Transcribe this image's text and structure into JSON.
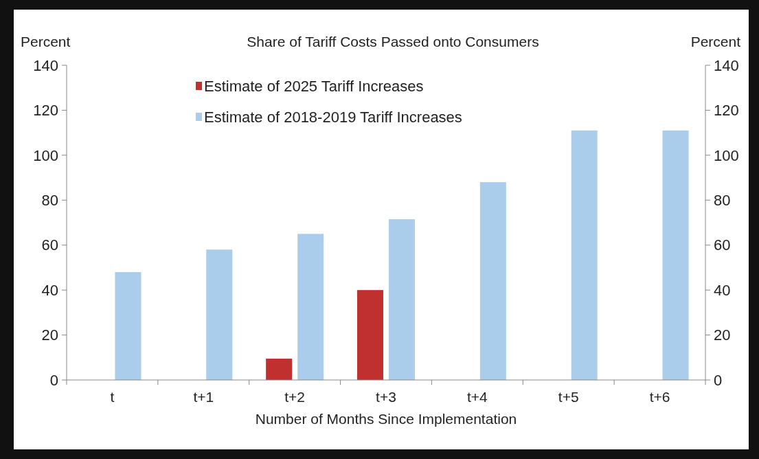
{
  "chart_data": {
    "type": "bar",
    "title": "Share of Tariff Costs Passed onto Consumers",
    "xlabel": "Number of Months Since Implementation",
    "ylabel": "Percent",
    "y2label": "Percent",
    "categories": [
      "t",
      "t+1",
      "t+2",
      "t+3",
      "t+4",
      "t+5",
      "t+6"
    ],
    "series": [
      {
        "name": "Estimate of 2025 Tariff Increases",
        "color": "#c0302e",
        "values": [
          null,
          null,
          9.5,
          40,
          null,
          null,
          null
        ]
      },
      {
        "name": "Estimate of 2018-2019 Tariff Increases",
        "color": "#a9cdea",
        "values": [
          48,
          58,
          65,
          71.5,
          88,
          111,
          111
        ]
      }
    ],
    "ylim": [
      0,
      140
    ],
    "yticks": [
      0,
      20,
      40,
      60,
      80,
      100,
      120,
      140
    ],
    "y2lim": [
      0,
      140
    ],
    "y2ticks": [
      0,
      20,
      40,
      60,
      80,
      100,
      120,
      140
    ],
    "legend": "top",
    "grid": false
  }
}
